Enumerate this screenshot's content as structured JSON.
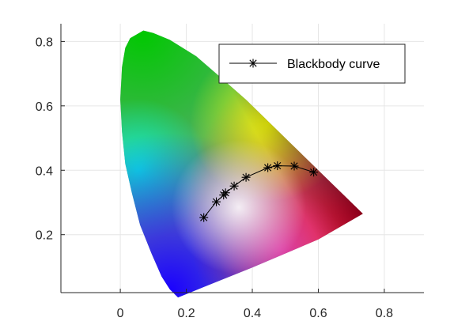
{
  "chart_data": {
    "type": "scatter",
    "title": "",
    "xlabel": "",
    "ylabel": "",
    "xlim": [
      -0.18,
      0.92
    ],
    "ylim": [
      0.02,
      0.855
    ],
    "xticks": [
      0,
      0.2,
      0.4,
      0.6,
      0.8
    ],
    "yticks": [
      0.2,
      0.4,
      0.6,
      0.8
    ],
    "xtick_labels": [
      "0",
      "0.2",
      "0.4",
      "0.6",
      "0.8"
    ],
    "ytick_labels": [
      "0.2",
      "0.4",
      "0.6",
      "0.8"
    ],
    "grid": true,
    "legend": {
      "placement": "top-right",
      "entries": [
        "Blackbody curve"
      ]
    },
    "gamut_outline": {
      "x": [
        0.175,
        0.15,
        0.125,
        0.095,
        0.06,
        0.035,
        0.015,
        0.005,
        0.0,
        0.005,
        0.015,
        0.03,
        0.07,
        0.1,
        0.15,
        0.23,
        0.3,
        0.38,
        0.45,
        0.52,
        0.58,
        0.64,
        0.69,
        0.735,
        0.6,
        0.4,
        0.175
      ],
      "y": [
        0.005,
        0.03,
        0.07,
        0.14,
        0.23,
        0.33,
        0.42,
        0.52,
        0.62,
        0.72,
        0.78,
        0.81,
        0.834,
        0.826,
        0.805,
        0.754,
        0.692,
        0.62,
        0.55,
        0.48,
        0.42,
        0.36,
        0.31,
        0.265,
        0.185,
        0.098,
        0.005
      ]
    },
    "series": [
      {
        "name": "Blackbody curve",
        "marker": "asterisk",
        "color": "#000000",
        "x": [
          0.253,
          0.291,
          0.313,
          0.319,
          0.345,
          0.381,
          0.447,
          0.476,
          0.527,
          0.586
        ],
        "y": [
          0.253,
          0.302,
          0.323,
          0.33,
          0.351,
          0.378,
          0.408,
          0.414,
          0.413,
          0.394
        ]
      }
    ]
  }
}
